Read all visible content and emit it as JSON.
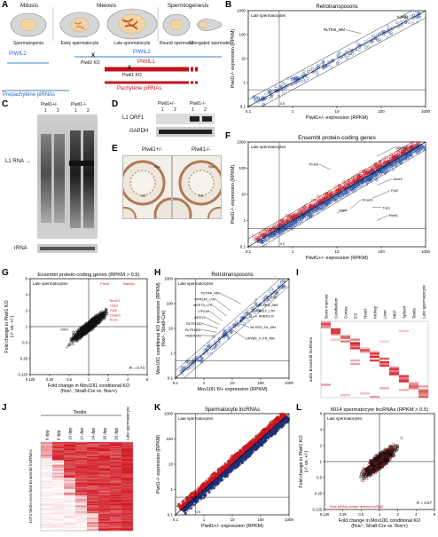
{
  "panels": {
    "A": {
      "letter": "A",
      "phases": [
        "Mitosis",
        "Meiosis",
        "Spermiogenesis"
      ],
      "cells": [
        "Spermatogonia",
        "Early spermatocyte",
        "Late spermatocyte",
        "Round spermatid",
        "Elongated spermatid"
      ],
      "labels": {
        "piwil2_left": "PIWIL2",
        "piwil2_right": "PIWIL2",
        "piwil2_ko": "Piwil2 KO",
        "piwil1": "PIWIL1",
        "piwil1_ko": "Piwil1 KO",
        "prepachytene": "Prepachytene piRNAs",
        "pachytene": "Pachytene piRNAs",
        "x_mark": "X"
      }
    },
    "B": {
      "letter": "B",
      "title": "Retrotransposons",
      "subtitle": "Late spermatocytes",
      "xlabel": "Piwil1+/- expression (RPKM)",
      "ylabel": "Piwil1-/- expression (RPKM)",
      "ticks_x": [
        "0.1",
        "1",
        "10",
        "100",
        "1000"
      ],
      "ticks_y": [
        "0.1",
        "1",
        "10",
        "100",
        "1000"
      ],
      "annotations": [
        "L1MM",
        "RLTR4I_MM"
      ],
      "guide_label": "0.5"
    },
    "C": {
      "letter": "C",
      "groups": [
        "Piwil1+/-",
        "Piwil1-/-"
      ],
      "lanes": [
        "1",
        "2",
        "1",
        "2"
      ],
      "band_label": "L1 RNA",
      "loading_label": "rRNA"
    },
    "D": {
      "letter": "D",
      "groups": [
        "Piwil1+/-",
        "Piwil1-/-"
      ],
      "lanes": [
        "1",
        "2",
        "1",
        "2"
      ],
      "rows": [
        "L1 ORF1",
        "GAPDH"
      ]
    },
    "E": {
      "letter": "E",
      "images": [
        {
          "title": "Piwil1+/-",
          "marks": [
            "Spc",
            "RS"
          ]
        },
        {
          "title": "Piwil1-/-",
          "marks": [
            "Spc",
            "RS"
          ]
        }
      ]
    },
    "F": {
      "letter": "F",
      "title": "Ensembl protein-coding genes",
      "subtitle": "Late spermatocytes",
      "xlabel": "Piwil1+/- expression (RPKM)",
      "ylabel": "Piwil1-/- expression (RPKM)",
      "ticks_x": [
        "0.1",
        "1",
        "10",
        "100",
        "1000"
      ],
      "ticks_y": [
        "0.1",
        "1",
        "10",
        "100",
        "1000"
      ],
      "annotations": [
        "Stambp",
        "Prdx5",
        "Acot1",
        "Ppt2",
        "Dnaic1",
        "Usp1",
        "Tnp1",
        "Piwil1"
      ],
      "guide_label": "0.5"
    },
    "G": {
      "letter": "G",
      "title": "Ensembl protein-coding genes (RPKM > 0.5)",
      "subtitle": "Late spermatocytes",
      "xlabel": [
        "Fold change in Mov10l1 conditional KO",
        "(flox/-, Stra8-Cre vs. flox/+)"
      ],
      "ylabel": [
        "Fold change in Piwil1 KO",
        "(-/- vs. +/-)"
      ],
      "ticks_x": [
        "0.125",
        "0.25",
        "0.5",
        "1",
        "2",
        "4",
        "8"
      ],
      "ticks_y": [
        "0.125",
        "0.25",
        "0.5",
        "1",
        "2",
        "4",
        "8"
      ],
      "annotations": [
        "Prdx5",
        "Stambp",
        "Tex101",
        "Usp1",
        "Ppt2",
        "Dnaic1",
        "Tex11",
        "Olfml"
      ],
      "r_label": "R = 0.74"
    },
    "H": {
      "letter": "H",
      "title": "Retrotransposons",
      "subtitle": "Late spermatocytes",
      "xlabel": "Mov10l1 fl/+ expression (RPKM)",
      "ylabel": [
        "Mov10l1 conditional KO expression (RPKM)",
        "(flox/-, Stra8-Cre)"
      ],
      "ticks_x": [
        "0.1",
        "1",
        "10",
        "100",
        "1000"
      ],
      "ticks_y": [
        "0.1",
        "1",
        "10",
        "100",
        "1000"
      ],
      "annotations": [
        "RLTR4I_MM",
        "ORR1A2_LTR",
        "IAPEY3_LTR",
        "LTR13A",
        "IAPEY3",
        "RLTR10D2",
        "RLTR13B1",
        "RMER19B",
        "L1MM",
        "RLTR10_MM",
        "BGLII_LTR",
        "RMER12C",
        "MLTR31_FA_MM",
        "ERVB5_2-LTR_MM"
      ]
    },
    "I": {
      "letter": "I",
      "tissues": [
        "Bone marrow",
        "Cerebellum",
        "Cortex",
        "ES",
        "Heart",
        "Kidney",
        "Liver",
        "MEF",
        "Spleen",
        "Testis",
        "Late spermatocyte"
      ],
      "ylabel": "4401 Ensembl lncRNAs"
    },
    "J": {
      "letter": "J",
      "group": "Testis",
      "samples": [
        "6 dpp",
        "8 dpp",
        "10 dpp",
        "12 dpp",
        "14 dpp",
        "18 dpp",
        "26 dpp",
        "Late spermatocyte"
      ],
      "ylabel": "1074 testis-enriched Ensembl lncRNAs"
    },
    "K": {
      "letter": "K",
      "title": "Spermatocyte lncRNAs",
      "subtitle": "Late spermatocytes",
      "xlabel": "Piwil1+/- expression (RPKM)",
      "ylabel": "Piwil1-/- expression (RPKM)",
      "ticks_x": [
        "0.1",
        "1",
        "10",
        "100",
        "1000"
      ],
      "ticks_y": [
        "0.1",
        "1",
        "10",
        "100",
        "1000"
      ],
      "guide_label": "0.5"
    },
    "L": {
      "letter": "L",
      "title": "6014 spermatocyte lncRNAs (RPKM > 0.5)",
      "subtitle": "Late spermatocytes",
      "xlabel": [
        "Fold change in Mov10l1 conditional KO",
        "(flox/-, Stra8-Cre vs. flox/+)"
      ],
      "ylabel": [
        "Fold change in Piwil1 KO",
        "(-/- vs. +/-)"
      ],
      "ticks_x": [
        "0.125",
        "0.25",
        "0.5",
        "1",
        "2",
        "4",
        "8"
      ],
      "ticks_y": [
        "0.125",
        "0.25",
        "0.5",
        "1",
        "2",
        "4",
        "8"
      ],
      "r_label": "R = 0.57",
      "legend": "Red: piRNA-cluster-derived lncRNA"
    }
  },
  "colors": {
    "red": "#d0141e",
    "blue": "#2a4fa0",
    "lightblue": "#5aa0d8",
    "navy": "#1c2f7a",
    "cell_fill": "#d8d8d8",
    "nucleus": "#f4d6a8"
  }
}
